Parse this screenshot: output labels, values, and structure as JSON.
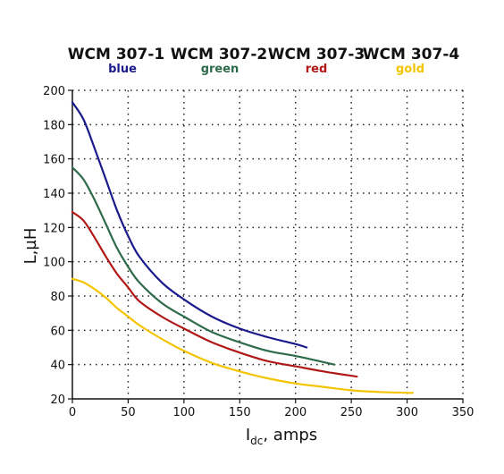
{
  "chart_data": {
    "type": "line",
    "xlabel_main": "I",
    "xlabel_sub": "dc",
    "xlabel_rest": ", amps",
    "ylabel": "L,µH",
    "xlim": [
      0,
      350
    ],
    "ylim": [
      20,
      200
    ],
    "x_ticks": [
      0,
      50,
      100,
      150,
      200,
      250,
      300,
      350
    ],
    "y_ticks": [
      20,
      40,
      60,
      80,
      100,
      120,
      140,
      160,
      180,
      200
    ],
    "grid": true,
    "legend_position": "top",
    "series": [
      {
        "name": "WCM 307-1",
        "color_label": "blue",
        "color": "#1a1a8c",
        "x": [
          0,
          10,
          20,
          30,
          40,
          50,
          60,
          80,
          100,
          125,
          150,
          175,
          200,
          210
        ],
        "y": [
          193,
          183,
          166,
          148,
          130,
          115,
          103,
          88,
          78,
          68,
          61,
          56,
          52,
          50
        ]
      },
      {
        "name": "WCM 307-2",
        "color_label": "green",
        "color": "#2e6b4a",
        "x": [
          0,
          10,
          20,
          30,
          40,
          50,
          60,
          80,
          100,
          125,
          150,
          175,
          200,
          235
        ],
        "y": [
          155,
          148,
          136,
          122,
          108,
          97,
          88,
          76,
          68,
          59,
          53,
          48,
          45,
          40
        ]
      },
      {
        "name": "WCM 307-3",
        "color_label": "red",
        "color": "#b01818",
        "x": [
          0,
          10,
          20,
          30,
          40,
          50,
          60,
          80,
          100,
          125,
          150,
          175,
          200,
          225,
          255
        ],
        "y": [
          129,
          124,
          114,
          103,
          93,
          85,
          77,
          68,
          61,
          53,
          47,
          42,
          39,
          36,
          33
        ]
      },
      {
        "name": "WCM 307-4",
        "color_label": "gold",
        "color": "#f5c400",
        "x": [
          0,
          10,
          20,
          30,
          40,
          50,
          60,
          80,
          100,
          125,
          150,
          175,
          200,
          225,
          250,
          275,
          305
        ],
        "y": [
          90,
          88,
          84,
          79,
          73,
          68,
          63,
          55,
          48,
          41,
          36,
          32,
          29,
          27,
          25,
          24,
          23.5
        ]
      }
    ]
  }
}
